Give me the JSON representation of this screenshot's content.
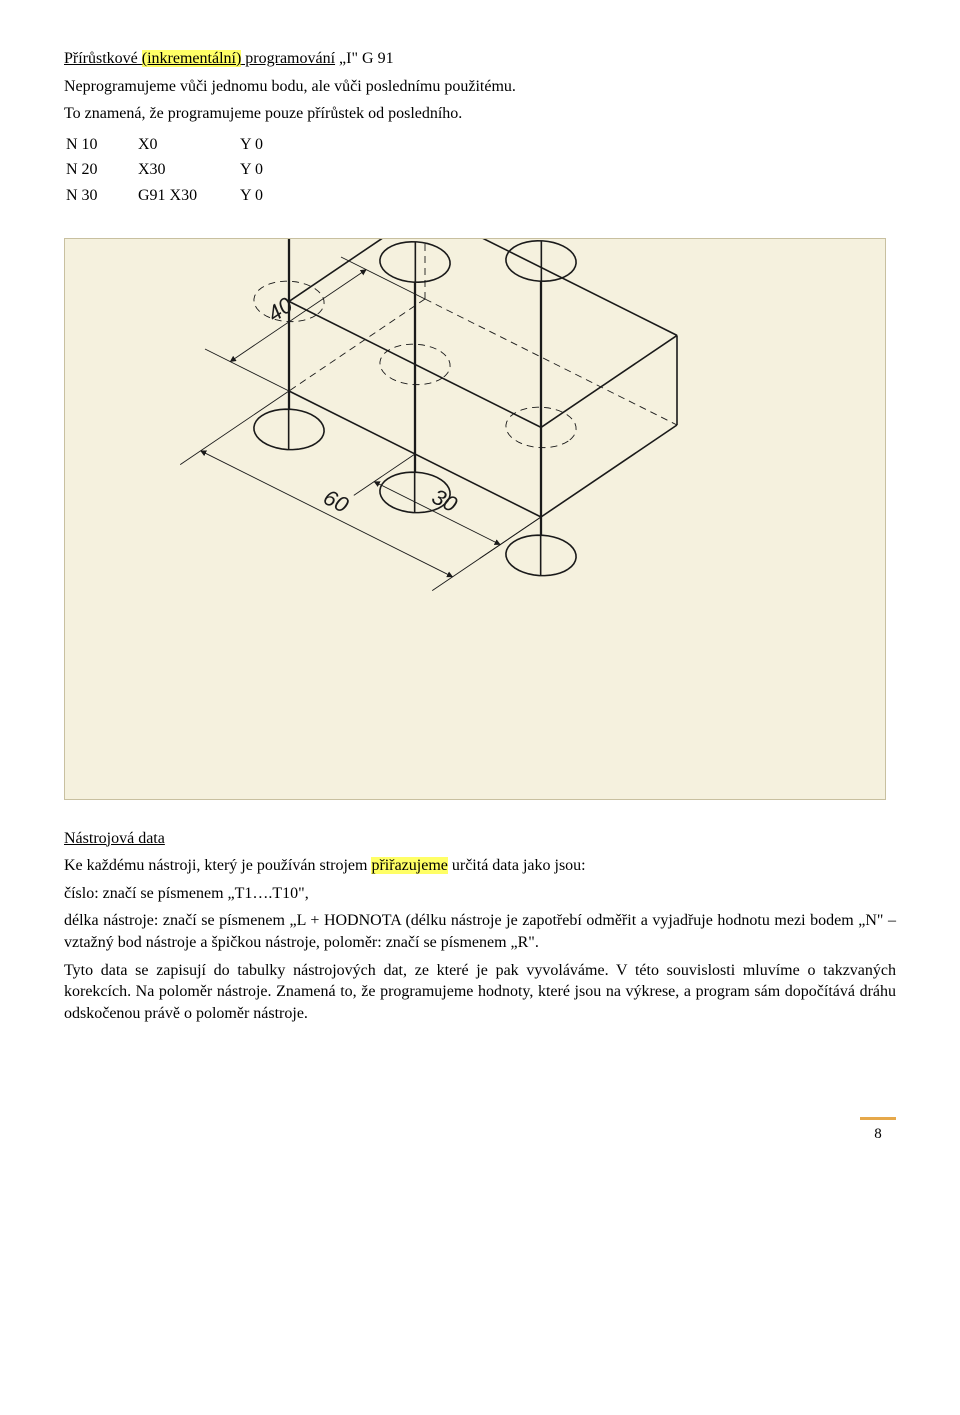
{
  "heading": {
    "underlined_prefix": "Přírůstkové ",
    "highlight": "(inkrementální)",
    "underlined_suffix": " programování",
    "tail": " „I\" G 91"
  },
  "intro1": "Neprogramujeme vůči jednomu bodu, ale vůči poslednímu použitému.",
  "intro2": "To znamená, že programujeme pouze přírůstek od posledního.",
  "code": {
    "r1": {
      "n": "N 10",
      "x": "X0",
      "y": "Y 0"
    },
    "r2": {
      "n": "N 20",
      "x": "X30",
      "y": "Y 0"
    },
    "r3": {
      "n": "N 30",
      "x": "G91 X30",
      "y": "Y 0"
    }
  },
  "diagram": {
    "bg": "#f5f1de",
    "stroke": "#1a1a1a",
    "dash": "#1a1a1a",
    "dim_heavy_width": 1.6,
    "dim_thin_width": 0.9,
    "dash_pattern": "7,5",
    "dim_40": "40",
    "dim_30": "30",
    "dim_60": "60",
    "dim_font_size": 22,
    "dim_font_family": "Arial, Helvetica, sans-serif",
    "dim_font_style": "italic"
  },
  "section2_title": "Nástrojová data",
  "para_a_pre": "Ke každému nástroji, který je používán strojem ",
  "para_a_hl": "přiřazujeme",
  "para_a_post": " určitá data jako jsou:",
  "para_b": "číslo: značí se písmenem „T1….T10\",",
  "para_c": "délka nástroje: značí se písmenem „L + HODNOTA (délku nástroje je zapotřebí odměřit a vyjadřuje hodnotu mezi bodem „N\" – vztažný bod nástroje a špičkou nástroje, poloměr: značí se písmenem „R\".",
  "para_d": "Tyto data se zapisují do tabulky nástrojových dat, ze které je pak vyvoláváme. V této souvislosti mluvíme o takzvaných korekcích. Na poloměr nástroje. Znamená to, že programujeme hodnoty, které jsou na výkrese, a program sám dopočítává dráhu odskočenou právě o poloměr nástroje.",
  "page_number": "8",
  "page_rule_color": "#e6a84a"
}
